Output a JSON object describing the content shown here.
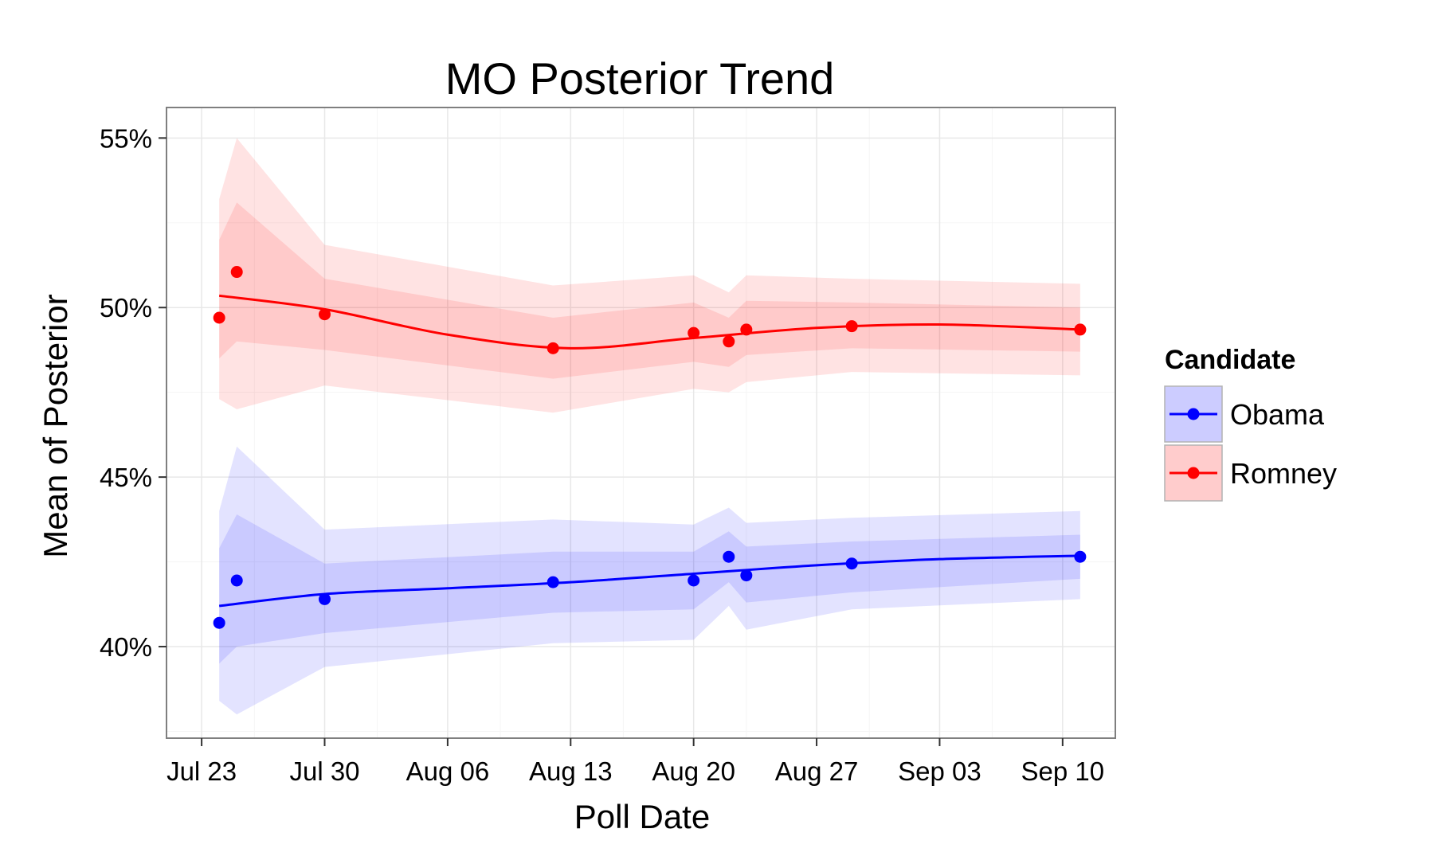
{
  "chart_data": {
    "type": "line",
    "title": "MO  Posterior Trend",
    "xlabel": "Poll Date",
    "ylabel": "Mean of Posterior",
    "x_ticks": [
      "2012-07-23",
      "2012-07-30",
      "2012-08-06",
      "2012-08-13",
      "2012-08-20",
      "2012-08-27",
      "2012-09-03",
      "2012-09-10"
    ],
    "x_tick_labels": [
      "Jul 23",
      "Jul 30",
      "Aug 06",
      "Aug 13",
      "Aug 20",
      "Aug 27",
      "Sep 03",
      "Sep 10"
    ],
    "xlim": [
      "2012-07-21",
      "2012-09-13"
    ],
    "y_ticks": [
      40,
      45,
      50,
      55
    ],
    "y_tick_labels": [
      "40%",
      "45%",
      "50%",
      "55%"
    ],
    "ylim": [
      37.3,
      55.9
    ],
    "grid": true,
    "legend": {
      "title": "Candidate",
      "position": "right"
    },
    "series": [
      {
        "name": "Obama",
        "color": "#0000ff",
        "points": [
          {
            "x": "2012-07-24",
            "y": 40.7
          },
          {
            "x": "2012-07-25",
            "y": 41.95
          },
          {
            "x": "2012-07-30",
            "y": 41.4
          },
          {
            "x": "2012-08-12",
            "y": 41.9
          },
          {
            "x": "2012-08-20",
            "y": 41.95
          },
          {
            "x": "2012-08-22",
            "y": 42.65
          },
          {
            "x": "2012-08-23",
            "y": 42.1
          },
          {
            "x": "2012-08-29",
            "y": 42.45
          },
          {
            "x": "2012-09-11",
            "y": 42.65
          }
        ],
        "trend": [
          {
            "x": "2012-07-24",
            "y": 41.2
          },
          {
            "x": "2012-07-30",
            "y": 41.55
          },
          {
            "x": "2012-08-06",
            "y": 41.72
          },
          {
            "x": "2012-08-13",
            "y": 41.9
          },
          {
            "x": "2012-08-20",
            "y": 42.15
          },
          {
            "x": "2012-08-27",
            "y": 42.4
          },
          {
            "x": "2012-09-03",
            "y": 42.58
          },
          {
            "x": "2012-09-11",
            "y": 42.68
          }
        ],
        "inner_band": [
          {
            "x": "2012-07-24",
            "lo": 39.5,
            "hi": 42.9
          },
          {
            "x": "2012-07-25",
            "lo": 40.0,
            "hi": 43.9
          },
          {
            "x": "2012-07-30",
            "lo": 40.4,
            "hi": 42.45
          },
          {
            "x": "2012-08-12",
            "lo": 41.0,
            "hi": 42.8
          },
          {
            "x": "2012-08-20",
            "lo": 41.1,
            "hi": 42.8
          },
          {
            "x": "2012-08-22",
            "lo": 41.9,
            "hi": 43.4
          },
          {
            "x": "2012-08-23",
            "lo": 41.3,
            "hi": 42.95
          },
          {
            "x": "2012-08-29",
            "lo": 41.6,
            "hi": 43.1
          },
          {
            "x": "2012-09-11",
            "lo": 42.0,
            "hi": 43.3
          }
        ],
        "outer_band": [
          {
            "x": "2012-07-24",
            "lo": 38.4,
            "hi": 44.0
          },
          {
            "x": "2012-07-25",
            "lo": 38.0,
            "hi": 45.9
          },
          {
            "x": "2012-07-30",
            "lo": 39.4,
            "hi": 43.45
          },
          {
            "x": "2012-08-12",
            "lo": 40.1,
            "hi": 43.75
          },
          {
            "x": "2012-08-20",
            "lo": 40.2,
            "hi": 43.6
          },
          {
            "x": "2012-08-22",
            "lo": 41.2,
            "hi": 44.1
          },
          {
            "x": "2012-08-23",
            "lo": 40.5,
            "hi": 43.65
          },
          {
            "x": "2012-08-29",
            "lo": 41.1,
            "hi": 43.8
          },
          {
            "x": "2012-09-11",
            "lo": 41.4,
            "hi": 44.0
          }
        ]
      },
      {
        "name": "Romney",
        "color": "#ff0000",
        "points": [
          {
            "x": "2012-07-24",
            "y": 49.7
          },
          {
            "x": "2012-07-25",
            "y": 51.05
          },
          {
            "x": "2012-07-30",
            "y": 49.8
          },
          {
            "x": "2012-08-12",
            "y": 48.8
          },
          {
            "x": "2012-08-20",
            "y": 49.25
          },
          {
            "x": "2012-08-22",
            "y": 49.0
          },
          {
            "x": "2012-08-23",
            "y": 49.35
          },
          {
            "x": "2012-08-29",
            "y": 49.45
          },
          {
            "x": "2012-09-11",
            "y": 49.35
          }
        ],
        "trend": [
          {
            "x": "2012-07-24",
            "y": 50.35
          },
          {
            "x": "2012-07-30",
            "y": 49.95
          },
          {
            "x": "2012-08-06",
            "y": 49.2
          },
          {
            "x": "2012-08-13",
            "y": 48.8
          },
          {
            "x": "2012-08-20",
            "y": 49.1
          },
          {
            "x": "2012-08-27",
            "y": 49.4
          },
          {
            "x": "2012-09-03",
            "y": 49.5
          },
          {
            "x": "2012-09-11",
            "y": 49.35
          }
        ],
        "inner_band": [
          {
            "x": "2012-07-24",
            "lo": 48.5,
            "hi": 52.0
          },
          {
            "x": "2012-07-25",
            "lo": 49.0,
            "hi": 53.1
          },
          {
            "x": "2012-07-30",
            "lo": 48.75,
            "hi": 50.85
          },
          {
            "x": "2012-08-12",
            "lo": 47.9,
            "hi": 49.7
          },
          {
            "x": "2012-08-20",
            "lo": 48.4,
            "hi": 50.15
          },
          {
            "x": "2012-08-22",
            "lo": 48.25,
            "hi": 49.7
          },
          {
            "x": "2012-08-23",
            "lo": 48.6,
            "hi": 50.2
          },
          {
            "x": "2012-08-29",
            "lo": 48.8,
            "hi": 50.15
          },
          {
            "x": "2012-09-11",
            "lo": 48.7,
            "hi": 50.0
          }
        ],
        "outer_band": [
          {
            "x": "2012-07-24",
            "lo": 47.3,
            "hi": 53.2
          },
          {
            "x": "2012-07-25",
            "lo": 47.0,
            "hi": 55.0
          },
          {
            "x": "2012-07-30",
            "lo": 47.7,
            "hi": 51.85
          },
          {
            "x": "2012-08-12",
            "lo": 46.9,
            "hi": 50.65
          },
          {
            "x": "2012-08-20",
            "lo": 47.6,
            "hi": 50.95
          },
          {
            "x": "2012-08-22",
            "lo": 47.5,
            "hi": 50.45
          },
          {
            "x": "2012-08-23",
            "lo": 47.8,
            "hi": 50.95
          },
          {
            "x": "2012-08-29",
            "lo": 48.1,
            "hi": 50.85
          },
          {
            "x": "2012-09-11",
            "lo": 48.0,
            "hi": 50.7
          }
        ]
      }
    ]
  }
}
